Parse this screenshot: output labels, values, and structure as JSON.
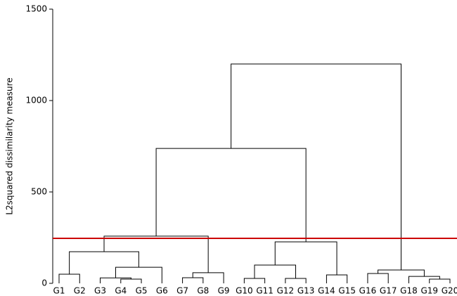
{
  "chart_data": {
    "type": "dendrogram",
    "y_label": "L2squared dissimilarity measure",
    "ylim": [
      0,
      1500
    ],
    "yticks": [
      0,
      500,
      1000,
      1500
    ],
    "line_color": "#000000",
    "cut_height": 246,
    "cut_color": "#cc0000",
    "tree": {
      "height": 1200,
      "children": [
        {
          "height": 738,
          "children": [
            {
              "height": 258,
              "children": [
                {
                  "height": 173,
                  "children": [
                    {
                      "height": 50,
                      "children": [
                        {
                          "label": "G1"
                        },
                        {
                          "label": "G2"
                        }
                      ]
                    },
                    {
                      "height": 88,
                      "children": [
                        {
                          "height": 30,
                          "children": [
                            {
                              "label": "G3"
                            },
                            {
                              "height": 23,
                              "children": [
                                {
                                  "label": "G4"
                                },
                                {
                                  "label": "G5"
                                }
                              ]
                            }
                          ]
                        },
                        {
                          "label": "G6"
                        }
                      ]
                    }
                  ]
                },
                {
                  "height": 58,
                  "children": [
                    {
                      "height": 31,
                      "children": [
                        {
                          "label": "G7"
                        },
                        {
                          "label": "G8"
                        }
                      ]
                    },
                    {
                      "label": "G9"
                    }
                  ]
                }
              ]
            },
            {
              "height": 227,
              "children": [
                {
                  "height": 100,
                  "children": [
                    {
                      "height": 27,
                      "children": [
                        {
                          "label": "G10"
                        },
                        {
                          "label": "G11"
                        }
                      ]
                    },
                    {
                      "height": 27,
                      "children": [
                        {
                          "label": "G12"
                        },
                        {
                          "label": "G13"
                        }
                      ]
                    }
                  ]
                },
                {
                  "height": 46,
                  "children": [
                    {
                      "label": "G14"
                    },
                    {
                      "label": "G15"
                    }
                  ]
                }
              ]
            }
          ]
        },
        {
          "height": 73,
          "children": [
            {
              "height": 54,
              "children": [
                {
                  "label": "G16"
                },
                {
                  "label": "G17"
                }
              ]
            },
            {
              "height": 38,
              "children": [
                {
                  "label": "G18"
                },
                {
                  "height": 23,
                  "children": [
                    {
                      "label": "G19"
                    },
                    {
                      "label": "G20"
                    }
                  ]
                }
              ]
            }
          ]
        }
      ]
    }
  }
}
